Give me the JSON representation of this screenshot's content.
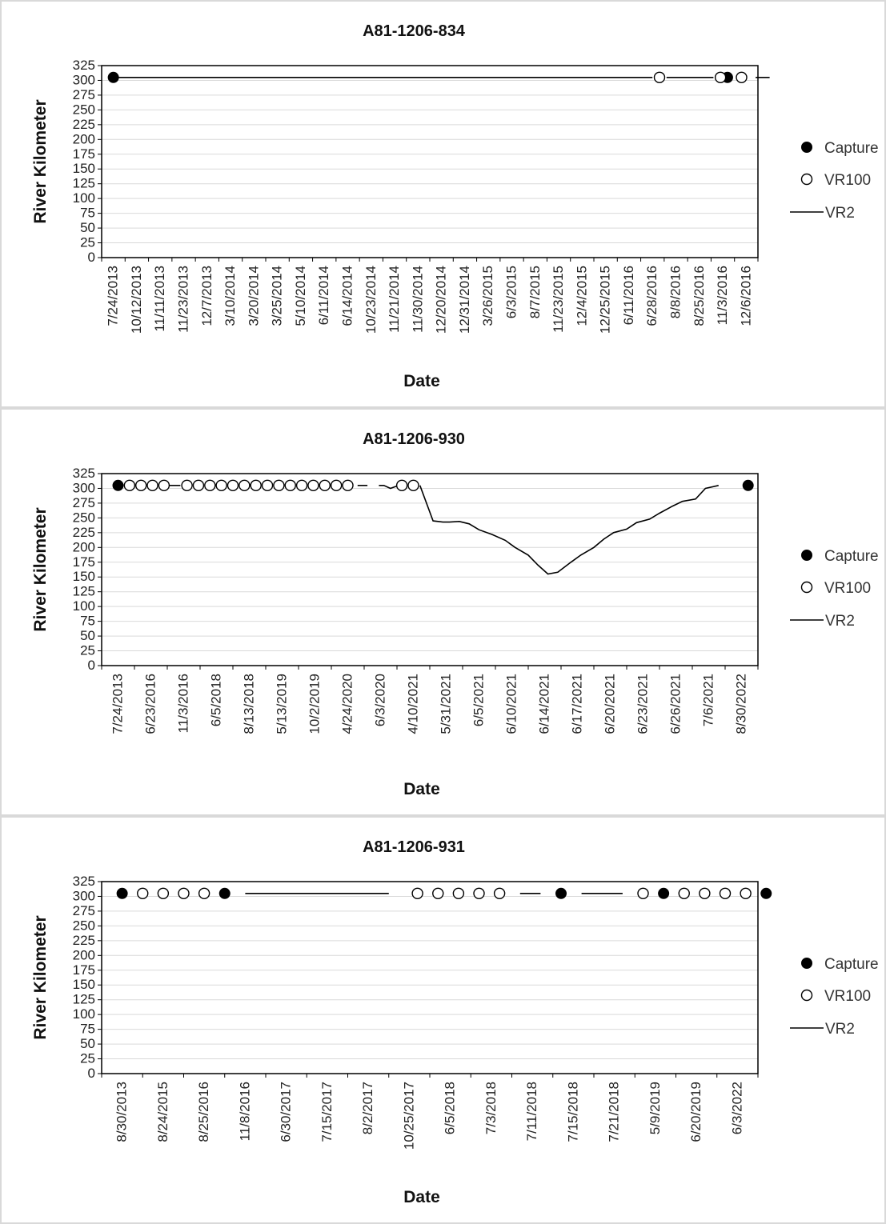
{
  "legend": {
    "capture": "Capture",
    "vr100": "VR100",
    "vr2": "VR2"
  },
  "chart_data": [
    {
      "type": "line",
      "title": "A81-1206-834",
      "xlabel": "Date",
      "ylabel": "River Kilometer",
      "ylim": [
        0,
        325
      ],
      "yticks": [
        0,
        25,
        50,
        75,
        100,
        125,
        150,
        175,
        200,
        225,
        250,
        275,
        300,
        325
      ],
      "grid": true,
      "legend_position": "right",
      "x": [
        "7/24/2013",
        "10/12/2013",
        "11/11/2013",
        "11/23/2013",
        "12/7/2013",
        "3/10/2014",
        "3/20/2014",
        "3/25/2014",
        "5/10/2014",
        "6/11/2014",
        "6/14/2014",
        "10/23/2014",
        "11/21/2014",
        "11/30/2014",
        "12/20/2014",
        "12/31/2014",
        "3/26/2015",
        "6/3/2015",
        "8/7/2015",
        "11/23/2015",
        "12/4/2015",
        "12/25/2015",
        "6/11/2016",
        "6/28/2016",
        "8/8/2016",
        "8/25/2016",
        "11/3/2016",
        "12/6/2016"
      ],
      "series": [
        {
          "name": "Capture",
          "marker": "filled",
          "points": [
            [
              0,
              305
            ],
            [
              26.2,
              305
            ]
          ]
        },
        {
          "name": "VR100",
          "marker": "open",
          "points": [
            [
              23.3,
              305
            ],
            [
              25.9,
              305
            ],
            [
              26.8,
              305
            ]
          ]
        },
        {
          "name": "VR2",
          "marker": "line",
          "segments": [
            [
              [
                0.1,
                305
              ],
              [
                23.0,
                305
              ]
            ],
            [
              [
                23.6,
                305
              ],
              [
                25.6,
                305
              ]
            ],
            [
              [
                27.4,
                305
              ],
              [
                28.0,
                305
              ]
            ]
          ]
        }
      ]
    },
    {
      "type": "line",
      "title": "A81-1206-930",
      "xlabel": "Date",
      "ylabel": "River Kilometer",
      "ylim": [
        0,
        325
      ],
      "yticks": [
        0,
        25,
        50,
        75,
        100,
        125,
        150,
        175,
        200,
        225,
        250,
        275,
        300,
        325
      ],
      "grid": true,
      "legend_position": "right",
      "x": [
        "7/24/2013",
        "6/23/2016",
        "11/3/2016",
        "6/5/2018",
        "8/13/2018",
        "5/13/2019",
        "10/2/2019",
        "4/24/2020",
        "6/3/2020",
        "4/10/2021",
        "5/31/2021",
        "6/5/2021",
        "6/10/2021",
        "6/14/2021",
        "6/17/2021",
        "6/20/2021",
        "6/23/2021",
        "6/26/2021",
        "7/6/2021",
        "8/30/2022"
      ],
      "series": [
        {
          "name": "Capture",
          "marker": "filled",
          "points": [
            [
              0,
              305
            ],
            [
              19.2,
              305
            ]
          ]
        },
        {
          "name": "VR100",
          "marker": "open",
          "points": [
            [
              0.35,
              305
            ],
            [
              0.7,
              305
            ],
            [
              1.05,
              305
            ],
            [
              1.4,
              305
            ],
            [
              2.1,
              305
            ],
            [
              2.45,
              305
            ],
            [
              2.8,
              305
            ],
            [
              3.15,
              305
            ],
            [
              3.5,
              305
            ],
            [
              3.85,
              305
            ],
            [
              4.2,
              305
            ],
            [
              4.55,
              305
            ],
            [
              4.9,
              305
            ],
            [
              5.25,
              305
            ],
            [
              5.6,
              305
            ],
            [
              5.95,
              305
            ],
            [
              6.3,
              305
            ],
            [
              6.65,
              305
            ],
            [
              7.0,
              305
            ],
            [
              8.65,
              305
            ],
            [
              9.0,
              305
            ]
          ]
        },
        {
          "name": "VR2",
          "marker": "line",
          "segments": [
            [
              [
                1.55,
                305
              ],
              [
                1.9,
                305
              ]
            ],
            [
              [
                7.3,
                305
              ],
              [
                7.6,
                305
              ]
            ],
            [
              [
                7.95,
                305
              ],
              [
                8.1,
                305
              ],
              [
                8.3,
                300
              ],
              [
                8.55,
                305
              ]
            ],
            [
              [
                9.2,
                305
              ],
              [
                9.6,
                245
              ],
              [
                9.9,
                243
              ],
              [
                10.1,
                243
              ],
              [
                10.4,
                244
              ],
              [
                10.7,
                240
              ],
              [
                11.0,
                230
              ],
              [
                11.4,
                222
              ],
              [
                11.8,
                212
              ],
              [
                12.1,
                200
              ],
              [
                12.5,
                187
              ],
              [
                12.8,
                170
              ],
              [
                13.1,
                155
              ],
              [
                13.4,
                158
              ],
              [
                13.8,
                175
              ],
              [
                14.1,
                187
              ],
              [
                14.5,
                200
              ],
              [
                14.8,
                214
              ],
              [
                15.1,
                225
              ],
              [
                15.5,
                231
              ],
              [
                15.8,
                242
              ],
              [
                16.2,
                248
              ],
              [
                16.5,
                258
              ],
              [
                16.9,
                270
              ],
              [
                17.2,
                278
              ],
              [
                17.6,
                282
              ],
              [
                17.9,
                300
              ],
              [
                18.3,
                305
              ]
            ]
          ]
        }
      ]
    },
    {
      "type": "line",
      "title": "A81-1206-931",
      "xlabel": "Date",
      "ylabel": "River Kilometer",
      "ylim": [
        0,
        325
      ],
      "yticks": [
        0,
        25,
        50,
        75,
        100,
        125,
        150,
        175,
        200,
        225,
        250,
        275,
        300,
        325
      ],
      "grid": true,
      "legend_position": "right",
      "x": [
        "8/30/2013",
        "8/24/2015",
        "8/25/2016",
        "11/8/2016",
        "6/30/2017",
        "7/15/2017",
        "8/2/2017",
        "10/25/2017",
        "6/5/2018",
        "7/3/2018",
        "7/11/2018",
        "7/15/2018",
        "7/21/2018",
        "5/9/2019",
        "6/20/2019",
        "6/3/2022"
      ],
      "series": [
        {
          "name": "Capture",
          "marker": "filled",
          "points": [
            [
              0,
              305
            ],
            [
              2.5,
              305
            ],
            [
              10.7,
              305
            ],
            [
              13.2,
              305
            ],
            [
              15.7,
              305
            ]
          ]
        },
        {
          "name": "VR100",
          "marker": "open",
          "points": [
            [
              0.5,
              305
            ],
            [
              1.0,
              305
            ],
            [
              1.5,
              305
            ],
            [
              2.0,
              305
            ],
            [
              7.2,
              305
            ],
            [
              7.7,
              305
            ],
            [
              8.2,
              305
            ],
            [
              8.7,
              305
            ],
            [
              9.2,
              305
            ],
            [
              12.7,
              305
            ],
            [
              13.7,
              305
            ],
            [
              14.2,
              305
            ],
            [
              14.7,
              305
            ],
            [
              15.2,
              305
            ]
          ]
        },
        {
          "name": "VR2",
          "marker": "line",
          "segments": [
            [
              [
                3.0,
                305
              ],
              [
                6.5,
                305
              ]
            ],
            [
              [
                9.7,
                305
              ],
              [
                10.2,
                305
              ]
            ],
            [
              [
                11.2,
                305
              ],
              [
                12.2,
                305
              ]
            ]
          ]
        }
      ]
    }
  ]
}
